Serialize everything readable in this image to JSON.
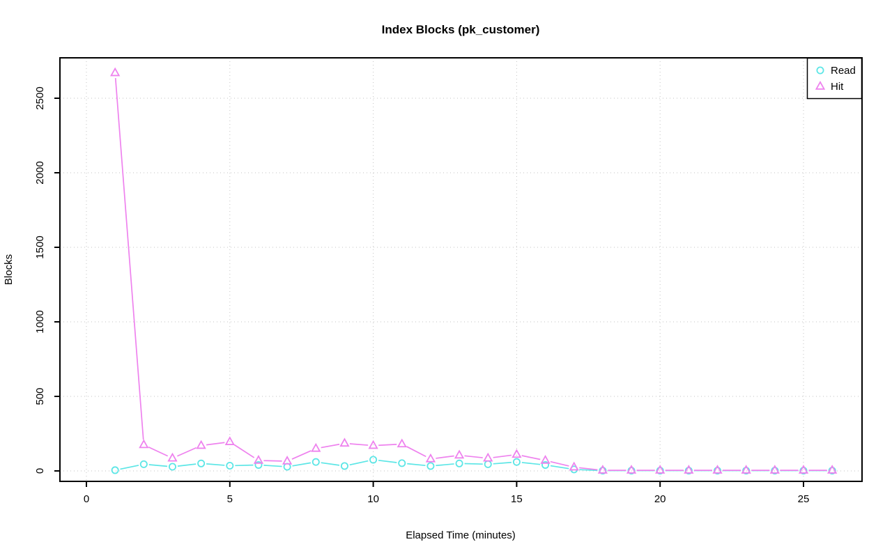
{
  "chart_data": {
    "type": "line",
    "title": "Index Blocks (pk_customer)",
    "xlabel": "Elapsed Time (minutes)",
    "ylabel": "Blocks",
    "x_ticks": [
      0,
      5,
      10,
      15,
      20,
      25
    ],
    "y_ticks": [
      0,
      500,
      1000,
      1500,
      2000,
      2500
    ],
    "xlim": [
      0,
      27
    ],
    "ylim": [
      -70,
      2770
    ],
    "grid": "dotted",
    "grid_color": "#c2c2c2",
    "axis_color": "#000000",
    "background_color": "#ffffff",
    "legend_position": "top-right",
    "x": [
      1,
      2,
      3,
      4,
      5,
      6,
      7,
      8,
      9,
      10,
      11,
      12,
      13,
      14,
      15,
      16,
      17,
      18,
      19,
      20,
      21,
      22,
      23,
      24,
      25,
      26
    ],
    "series": [
      {
        "name": "Read",
        "color": "#5ce6e6",
        "marker": "circle",
        "values": [
          5,
          45,
          28,
          50,
          35,
          40,
          28,
          60,
          33,
          75,
          52,
          33,
          50,
          45,
          60,
          40,
          10,
          2,
          2,
          2,
          2,
          2,
          2,
          2,
          2,
          2
        ]
      },
      {
        "name": "Hit",
        "color": "#ee82ee",
        "marker": "triangle",
        "values": [
          2670,
          175,
          85,
          170,
          195,
          70,
          65,
          150,
          185,
          170,
          180,
          80,
          105,
          85,
          110,
          70,
          25,
          4,
          4,
          4,
          4,
          4,
          4,
          4,
          4,
          4
        ]
      }
    ]
  }
}
